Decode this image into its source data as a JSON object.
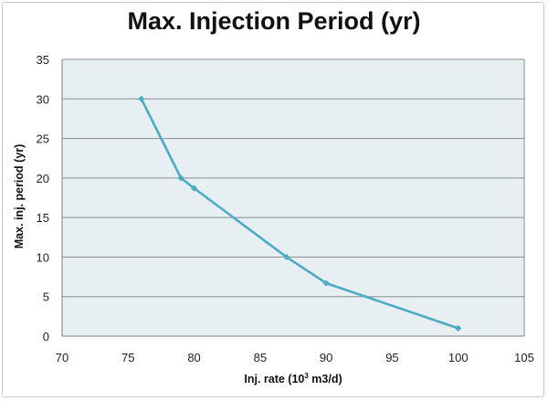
{
  "chart_data": {
    "type": "line",
    "title": "Max. Injection Period (yr)",
    "xlabel_prefix": "Inj. rate (10",
    "xlabel_sup": "3",
    "xlabel_suffix": " m3/d)",
    "ylabel": "Max. inj. period (yr)",
    "xlim": [
      70,
      105
    ],
    "ylim": [
      0,
      35
    ],
    "xticks": [
      70,
      75,
      80,
      85,
      90,
      95,
      100,
      105
    ],
    "yticks": [
      0,
      5,
      10,
      15,
      20,
      25,
      30,
      35
    ],
    "grid": "horizontal",
    "legend": "none",
    "series": [
      {
        "color": "#4bacc6",
        "x": [
          76,
          79,
          80,
          87,
          90,
          100
        ],
        "y": [
          30,
          20,
          18.7,
          10,
          6.7,
          1
        ]
      }
    ],
    "plot_background": "#e8eff3"
  }
}
